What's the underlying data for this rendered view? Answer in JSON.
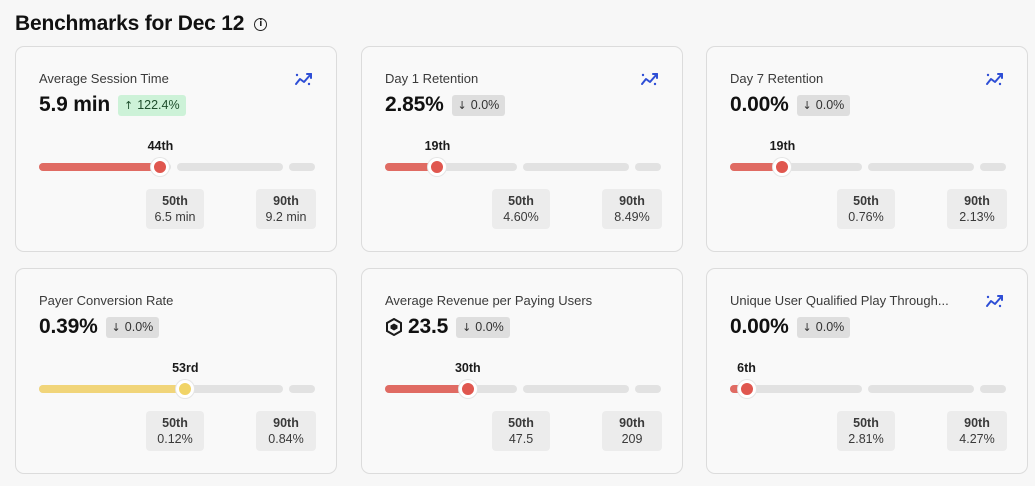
{
  "page": {
    "title": "Benchmarks for Dec 12",
    "info_icon": "info-icon"
  },
  "colors": {
    "red": "#e0574f",
    "yellow": "#f1d467",
    "up_badge": "#cdf2d8",
    "down_badge": "#dedede",
    "trend_icon": "#2f4fd6"
  },
  "cards": [
    {
      "title": "Average Session Time",
      "value": "5.9 min",
      "show_trend_icon": true,
      "show_currency_icon": false,
      "change": {
        "direction": "up",
        "arrow": "↑",
        "text": "122.4%"
      },
      "percentile_label": "44th",
      "percentile": 44,
      "fill_color": "red",
      "p50": {
        "label": "50th",
        "value": "6.5 min"
      },
      "p90": {
        "label": "90th",
        "value": "9.2 min"
      }
    },
    {
      "title": "Day 1 Retention",
      "value": "2.85%",
      "show_trend_icon": true,
      "show_currency_icon": false,
      "change": {
        "direction": "down",
        "arrow": "↓",
        "text": "0.0%"
      },
      "percentile_label": "19th",
      "percentile": 19,
      "fill_color": "red",
      "p50": {
        "label": "50th",
        "value": "4.60%"
      },
      "p90": {
        "label": "90th",
        "value": "8.49%"
      }
    },
    {
      "title": "Day 7 Retention",
      "value": "0.00%",
      "show_trend_icon": true,
      "show_currency_icon": false,
      "change": {
        "direction": "down",
        "arrow": "↓",
        "text": "0.0%"
      },
      "percentile_label": "19th",
      "percentile": 19,
      "fill_color": "red",
      "p50": {
        "label": "50th",
        "value": "0.76%"
      },
      "p90": {
        "label": "90th",
        "value": "2.13%"
      }
    },
    {
      "title": "Payer Conversion Rate",
      "value": "0.39%",
      "show_trend_icon": false,
      "show_currency_icon": false,
      "change": {
        "direction": "down",
        "arrow": "↓",
        "text": "0.0%"
      },
      "percentile_label": "53rd",
      "percentile": 53,
      "fill_color": "yellow",
      "p50": {
        "label": "50th",
        "value": "0.12%"
      },
      "p90": {
        "label": "90th",
        "value": "0.84%"
      }
    },
    {
      "title": "Average Revenue per Paying Users",
      "value": "23.5",
      "show_trend_icon": false,
      "show_currency_icon": true,
      "change": {
        "direction": "down",
        "arrow": "↓",
        "text": "0.0%"
      },
      "percentile_label": "30th",
      "percentile": 30,
      "fill_color": "red",
      "p50": {
        "label": "50th",
        "value": "47.5"
      },
      "p90": {
        "label": "90th",
        "value": "209"
      }
    },
    {
      "title": "Unique User Qualified Play Through...",
      "value": "0.00%",
      "show_trend_icon": true,
      "show_currency_icon": false,
      "change": {
        "direction": "down",
        "arrow": "↓",
        "text": "0.0%"
      },
      "percentile_label": "6th",
      "percentile": 6,
      "fill_color": "red",
      "p50": {
        "label": "50th",
        "value": "2.81%"
      },
      "p90": {
        "label": "90th",
        "value": "4.27%"
      }
    }
  ]
}
